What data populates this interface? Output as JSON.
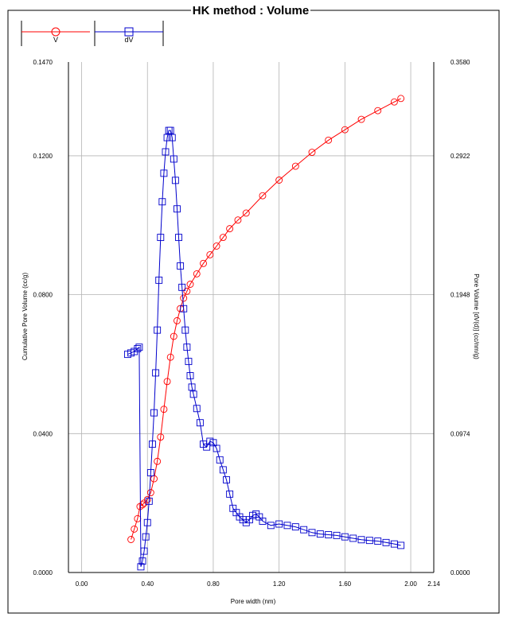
{
  "colors": {
    "V": "#ff0000",
    "dV": "#0000cc",
    "frame": "#000000",
    "grid": "#b4b4b4"
  },
  "chart_data": {
    "type": "line",
    "title": "HK method :   Volume",
    "xlabel": "Pore width (nm)",
    "ylabel_left": "Cumulative Pore Volume (cc/g)",
    "ylabel_right": "Pore Volume [dV(d)] (cc/nm/g)",
    "xlim": [
      -0.08,
      2.14
    ],
    "ylim_left": [
      0.0,
      0.147
    ],
    "ylim_right": [
      0.0,
      0.358
    ],
    "x_ticks": [
      "0.00",
      "0.40",
      "0.80",
      "1.20",
      "1.60",
      "2.00",
      "2.14"
    ],
    "x_tick_values": [
      0.0,
      0.4,
      0.8,
      1.2,
      1.6,
      2.0,
      2.14
    ],
    "y_left_ticks": [
      "0.0000",
      "0.0400",
      "0.0800",
      "0.1200",
      "0.1470"
    ],
    "y_left_tick_values": [
      0.0,
      0.04,
      0.08,
      0.12,
      0.147
    ],
    "y_right_ticks": [
      "0.0000",
      "0.0974",
      "0.1948",
      "0.2922",
      "0.3580"
    ],
    "y_right_tick_values": [
      0.0,
      0.0974,
      0.1948,
      0.2922,
      0.358
    ],
    "grid": true,
    "legend": {
      "position": "top-left",
      "entries": [
        "V",
        "dV"
      ]
    },
    "series": [
      {
        "name": "V",
        "axis": "left",
        "marker": "circle",
        "x": [
          0.3,
          0.32,
          0.34,
          0.355,
          0.37,
          0.38,
          0.4,
          0.42,
          0.44,
          0.46,
          0.48,
          0.5,
          0.52,
          0.54,
          0.56,
          0.58,
          0.6,
          0.62,
          0.64,
          0.66,
          0.7,
          0.74,
          0.78,
          0.82,
          0.86,
          0.9,
          0.95,
          1.0,
          1.1,
          1.2,
          1.3,
          1.4,
          1.5,
          1.6,
          1.7,
          1.8,
          1.9,
          1.94
        ],
        "y": [
          0.0095,
          0.0125,
          0.0155,
          0.019,
          0.0195,
          0.02,
          0.021,
          0.023,
          0.027,
          0.032,
          0.039,
          0.047,
          0.055,
          0.062,
          0.068,
          0.0725,
          0.076,
          0.079,
          0.081,
          0.083,
          0.086,
          0.089,
          0.0915,
          0.094,
          0.0965,
          0.099,
          0.1015,
          0.1035,
          0.1085,
          0.113,
          0.117,
          0.121,
          0.1245,
          0.1275,
          0.1305,
          0.133,
          0.1355,
          0.1365
        ]
      },
      {
        "name": "dV",
        "axis": "right",
        "marker": "square",
        "x": [
          0.28,
          0.3,
          0.32,
          0.34,
          0.35,
          0.36,
          0.37,
          0.38,
          0.39,
          0.4,
          0.41,
          0.42,
          0.43,
          0.44,
          0.45,
          0.46,
          0.47,
          0.48,
          0.49,
          0.5,
          0.51,
          0.52,
          0.53,
          0.54,
          0.55,
          0.56,
          0.57,
          0.58,
          0.59,
          0.6,
          0.61,
          0.62,
          0.63,
          0.64,
          0.65,
          0.66,
          0.67,
          0.68,
          0.7,
          0.72,
          0.74,
          0.76,
          0.78,
          0.8,
          0.82,
          0.84,
          0.86,
          0.88,
          0.9,
          0.92,
          0.94,
          0.96,
          0.98,
          1.0,
          1.02,
          1.04,
          1.06,
          1.08,
          1.1,
          1.15,
          1.2,
          1.25,
          1.3,
          1.35,
          1.4,
          1.45,
          1.5,
          1.55,
          1.6,
          1.65,
          1.7,
          1.75,
          1.8,
          1.85,
          1.9,
          1.94
        ],
        "y": [
          0.153,
          0.154,
          0.155,
          0.157,
          0.158,
          0.004,
          0.008,
          0.015,
          0.025,
          0.035,
          0.05,
          0.07,
          0.09,
          0.112,
          0.14,
          0.17,
          0.205,
          0.235,
          0.26,
          0.28,
          0.295,
          0.305,
          0.31,
          0.31,
          0.305,
          0.29,
          0.275,
          0.255,
          0.235,
          0.215,
          0.2,
          0.185,
          0.17,
          0.158,
          0.148,
          0.138,
          0.13,
          0.125,
          0.115,
          0.105,
          0.09,
          0.088,
          0.092,
          0.091,
          0.087,
          0.079,
          0.072,
          0.065,
          0.055,
          0.045,
          0.042,
          0.039,
          0.037,
          0.035,
          0.037,
          0.04,
          0.041,
          0.039,
          0.036,
          0.033,
          0.034,
          0.033,
          0.032,
          0.03,
          0.028,
          0.027,
          0.0265,
          0.026,
          0.025,
          0.024,
          0.023,
          0.0225,
          0.022,
          0.021,
          0.02,
          0.019
        ]
      }
    ]
  }
}
